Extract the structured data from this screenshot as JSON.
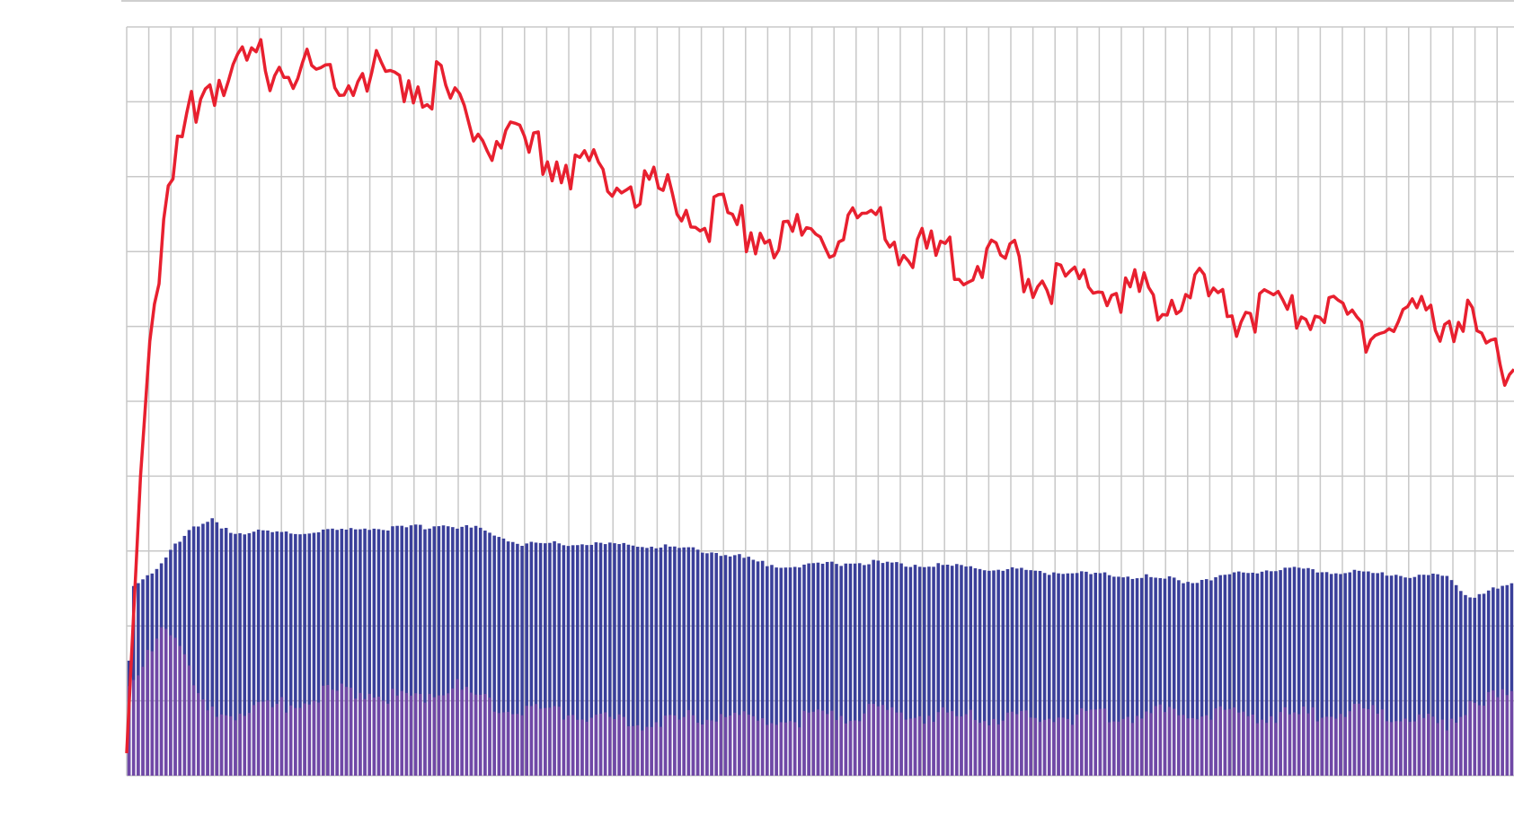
{
  "chart_data": {
    "type": "bar",
    "title": "",
    "xlabel": "",
    "ylabel": "",
    "ylim": [
      0,
      10
    ],
    "x_count": 300,
    "grid": true,
    "legend": "none",
    "series": [
      {
        "kind": "bar",
        "color": "#3a3f9a",
        "anchors": [
          [
            0,
            1.5
          ],
          [
            1,
            2.5
          ],
          [
            3,
            2.6
          ],
          [
            6,
            2.8
          ],
          [
            10,
            3.1
          ],
          [
            14,
            3.3
          ],
          [
            18,
            3.4
          ],
          [
            23,
            3.25
          ],
          [
            30,
            3.25
          ],
          [
            40,
            3.25
          ],
          [
            50,
            3.3
          ],
          [
            60,
            3.3
          ],
          [
            67,
            3.35
          ],
          [
            75,
            3.3
          ],
          [
            85,
            3.1
          ],
          [
            100,
            3.1
          ],
          [
            118,
            3.05
          ],
          [
            130,
            2.95
          ],
          [
            140,
            2.8
          ],
          [
            160,
            2.85
          ],
          [
            175,
            2.8
          ],
          [
            190,
            2.75
          ],
          [
            205,
            2.7
          ],
          [
            220,
            2.65
          ],
          [
            230,
            2.6
          ],
          [
            245,
            2.75
          ],
          [
            255,
            2.75
          ],
          [
            270,
            2.7
          ],
          [
            285,
            2.65
          ],
          [
            290,
            2.4
          ],
          [
            300,
            2.55
          ]
        ]
      },
      {
        "kind": "bar",
        "color": "#7a4aa8",
        "anchors": [
          [
            0,
            1.1
          ],
          [
            2,
            1.3
          ],
          [
            5,
            1.7
          ],
          [
            7,
            2.0
          ],
          [
            10,
            1.9
          ],
          [
            13,
            1.4
          ],
          [
            15,
            1.0
          ],
          [
            17,
            0.8
          ],
          [
            25,
            0.85
          ],
          [
            35,
            0.95
          ],
          [
            42,
            1.1
          ],
          [
            50,
            1.15
          ],
          [
            60,
            1.0
          ],
          [
            70,
            1.2
          ],
          [
            75,
            1.05
          ],
          [
            85,
            0.85
          ],
          [
            95,
            0.85
          ],
          [
            105,
            0.7
          ],
          [
            120,
            0.75
          ],
          [
            128,
            0.85
          ],
          [
            135,
            0.7
          ],
          [
            145,
            0.75
          ],
          [
            160,
            0.85
          ],
          [
            175,
            0.8
          ],
          [
            190,
            0.75
          ],
          [
            210,
            0.8
          ],
          [
            230,
            0.85
          ],
          [
            250,
            0.8
          ],
          [
            265,
            0.85
          ],
          [
            280,
            0.75
          ],
          [
            285,
            0.6
          ],
          [
            290,
            1.0
          ],
          [
            300,
            1.05
          ]
        ]
      },
      {
        "kind": "line",
        "color": "#e8202f",
        "anchors": [
          [
            0,
            0.3
          ],
          [
            3,
            4.0
          ],
          [
            5,
            5.8
          ],
          [
            8,
            7.3
          ],
          [
            11,
            8.3
          ],
          [
            14,
            8.9
          ],
          [
            17,
            9.3
          ],
          [
            20,
            9.4
          ],
          [
            25,
            9.5
          ],
          [
            30,
            9.6
          ],
          [
            40,
            9.5
          ],
          [
            50,
            9.5
          ],
          [
            60,
            9.4
          ],
          [
            68,
            9.3
          ],
          [
            75,
            8.7
          ],
          [
            85,
            8.45
          ],
          [
            95,
            8.3
          ],
          [
            105,
            8.1
          ],
          [
            115,
            7.9
          ],
          [
            125,
            7.6
          ],
          [
            135,
            7.4
          ],
          [
            145,
            7.3
          ],
          [
            160,
            7.45
          ],
          [
            170,
            7.1
          ],
          [
            180,
            7.0
          ],
          [
            190,
            6.95
          ],
          [
            200,
            6.7
          ],
          [
            210,
            6.65
          ],
          [
            220,
            6.5
          ],
          [
            230,
            6.6
          ],
          [
            240,
            6.3
          ],
          [
            250,
            6.25
          ],
          [
            260,
            6.3
          ],
          [
            270,
            6.05
          ],
          [
            280,
            6.2
          ],
          [
            290,
            6.2
          ],
          [
            296,
            5.6
          ],
          [
            300,
            5.7
          ]
        ]
      }
    ]
  }
}
